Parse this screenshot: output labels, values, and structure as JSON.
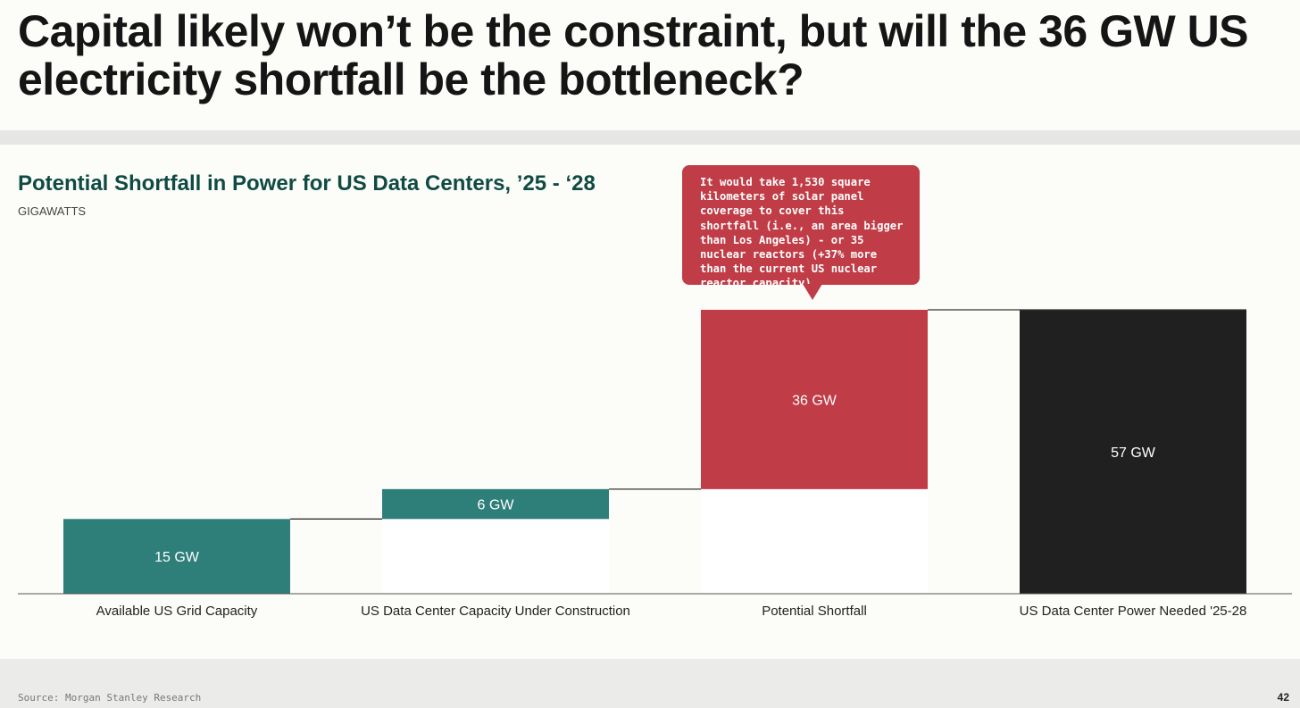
{
  "slide": {
    "title": "Capital likely won’t be the constraint, but will the 36 GW US electricity shortfall be the bottleneck?",
    "source": "Source: Morgan Stanley Research",
    "page_number": "42"
  },
  "callout": {
    "text": "It would take 1,530 square kilometers of solar panel coverage to cover this shortfall (i.e., an area bigger than Los Angeles) - or 35 nuclear reactors (+37% more than the current US nuclear reactor capacity)"
  },
  "chart_data": {
    "type": "waterfall",
    "title": "Potential Shortfall in Power for US Data Centers, ’25 - ‘28",
    "unit_label": "GIGAWATTS",
    "ylim": [
      0,
      57
    ],
    "grid": false,
    "categories": [
      "Available US Grid Capacity",
      "US Data Center Capacity Under Construction",
      "Potential Shortfall",
      "US Data Center Power Needed '25-28"
    ],
    "bars": [
      {
        "category": "Available US Grid Capacity",
        "start": 0,
        "end": 15,
        "value": 15,
        "label": "15 GW",
        "color": "#2e7e7a"
      },
      {
        "category": "US Data Center Capacity Under Construction",
        "start": 15,
        "end": 21,
        "value": 6,
        "label": "6 GW",
        "color": "#2e7e7a"
      },
      {
        "category": "Potential Shortfall",
        "start": 21,
        "end": 57,
        "value": 36,
        "label": "36 GW",
        "color": "#c03c46"
      },
      {
        "category": "US Data Center Power Needed '25-28",
        "start": 0,
        "end": 57,
        "value": 57,
        "label": "57 GW",
        "color": "#202020"
      }
    ]
  }
}
